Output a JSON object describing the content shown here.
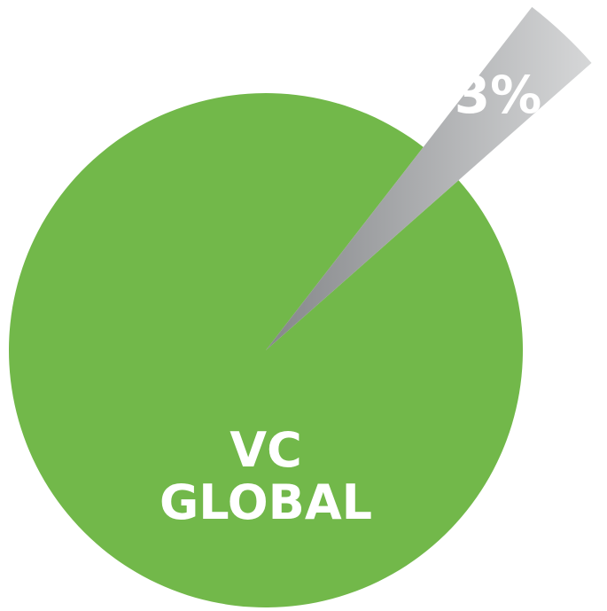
{
  "chart_data": {
    "type": "pie",
    "categories": [
      "VC GLOBAL",
      null
    ],
    "values": [
      97,
      3
    ],
    "value_labels": [
      null,
      "3%"
    ],
    "colors": [
      "#72b84a",
      "#a7a9ab"
    ]
  }
}
